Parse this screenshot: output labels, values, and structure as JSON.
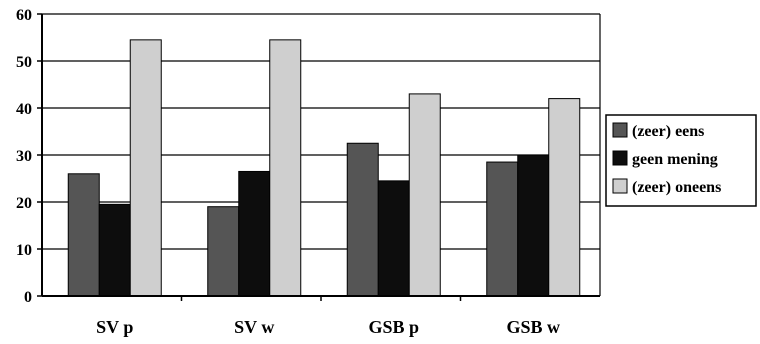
{
  "chart_data": {
    "type": "bar",
    "categories": [
      "SV p",
      "SV w",
      "GSB p",
      "GSB w"
    ],
    "series": [
      {
        "name": "(zeer) eens",
        "values": [
          26,
          19,
          32.5,
          28.5
        ],
        "color": "#555555"
      },
      {
        "name": "geen mening",
        "values": [
          19.5,
          26.5,
          24.5,
          30
        ],
        "color": "#0d0d0d"
      },
      {
        "name": "(zeer) oneens",
        "values": [
          54.5,
          54.5,
          43,
          42
        ],
        "color": "#cfcfcf"
      }
    ],
    "title": "",
    "xlabel": "",
    "ylabel": "",
    "ylim": [
      0,
      60
    ],
    "yticks": [
      "0",
      "10",
      "20",
      "30",
      "40",
      "50",
      "60"
    ],
    "grid": true,
    "legend_position": "right"
  }
}
